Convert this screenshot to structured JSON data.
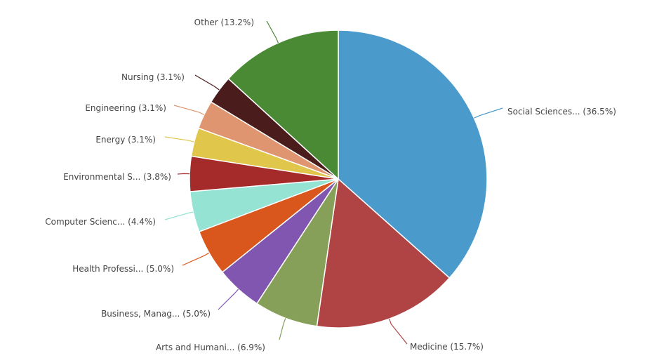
{
  "chart_data": {
    "type": "pie",
    "title": "",
    "slices": [
      {
        "label": "Social Sciences... (36.5%)",
        "value": 36.5,
        "color": "#4a9bcb"
      },
      {
        "label": "Medicine (15.7%)",
        "value": 15.7,
        "color": "#b04444"
      },
      {
        "label": "Arts and Humani... (6.9%)",
        "value": 6.9,
        "color": "#86a05a"
      },
      {
        "label": "Business, Manag... (5.0%)",
        "value": 5.0,
        "color": "#8156b0"
      },
      {
        "label": "Health Professi... (5.0%)",
        "value": 5.0,
        "color": "#d9571c"
      },
      {
        "label": "Computer Scienc... (4.4%)",
        "value": 4.4,
        "color": "#94e3d3"
      },
      {
        "label": "Environmental S... (3.8%)",
        "value": 3.8,
        "color": "#a52a2a"
      },
      {
        "label": "Energy (3.1%)",
        "value": 3.1,
        "color": "#e0c64a"
      },
      {
        "label": "Engineering (3.1%)",
        "value": 3.1,
        "color": "#df9570"
      },
      {
        "label": "Nursing (3.1%)",
        "value": 3.1,
        "color": "#4a1c1c"
      },
      {
        "label": "Other (13.2%)",
        "value": 13.2,
        "color": "#4a8a35"
      }
    ],
    "start_angle": "12 o'clock",
    "direction": "clockwise",
    "legend": "none (labels with leader lines)"
  }
}
